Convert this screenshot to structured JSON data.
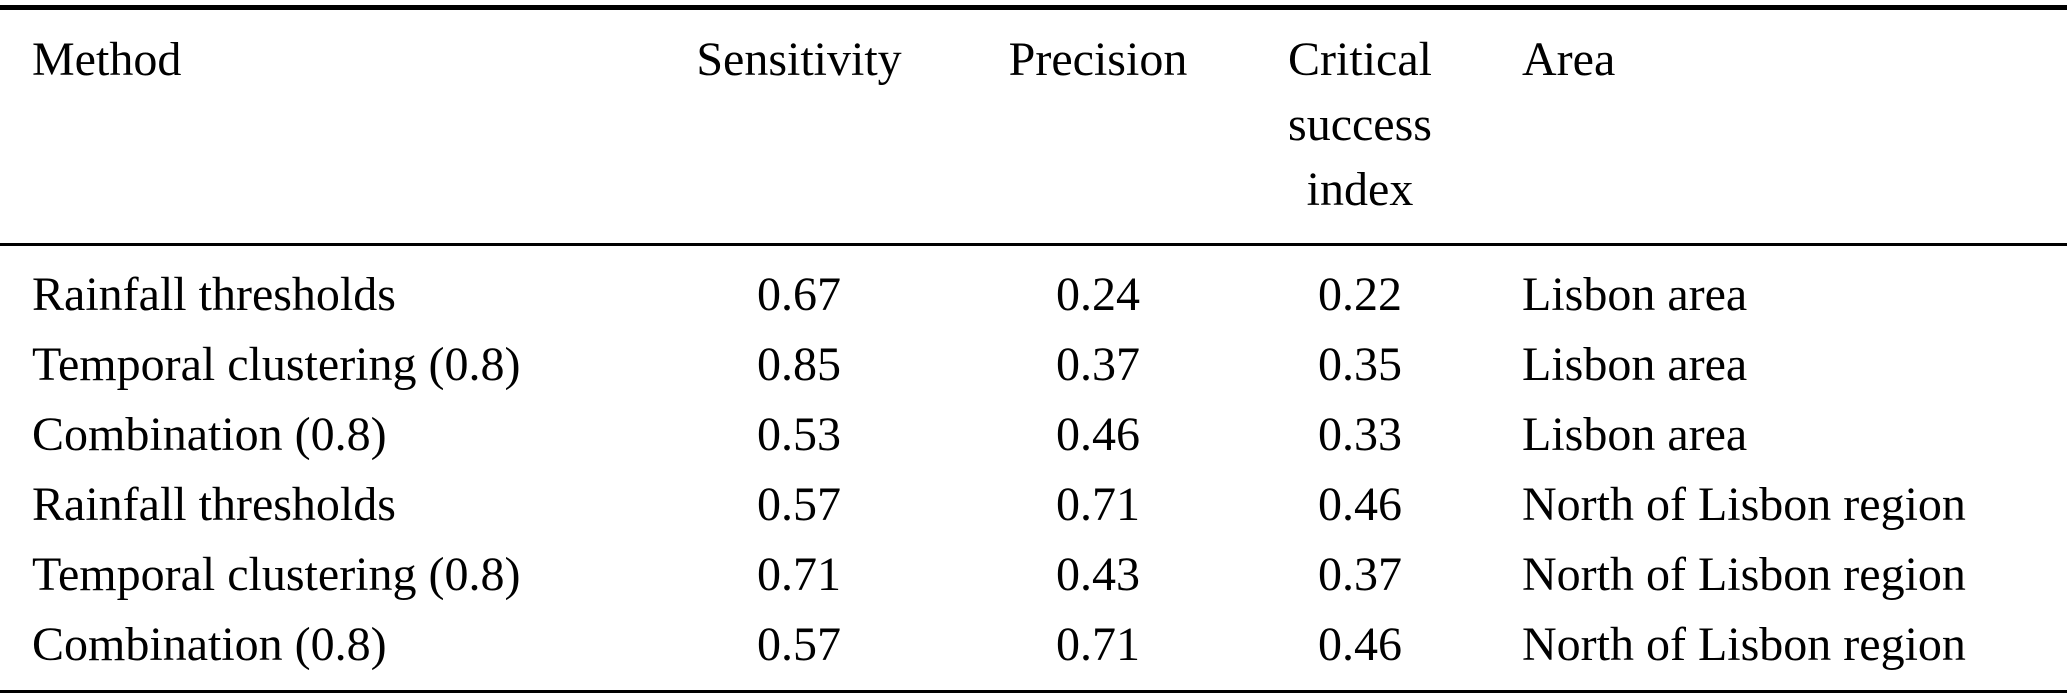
{
  "table": {
    "columns": [
      {
        "label": "Method"
      },
      {
        "label": "Sensitivity"
      },
      {
        "label": "Precision"
      },
      {
        "label": "Critical success index"
      },
      {
        "label": "Area"
      }
    ],
    "rows": [
      {
        "cells": [
          "Rainfall thresholds",
          "0.67",
          "0.24",
          "0.22",
          "Lisbon area"
        ]
      },
      {
        "cells": [
          "Temporal clustering (0.8)",
          "0.85",
          "0.37",
          "0.35",
          "Lisbon area"
        ]
      },
      {
        "cells": [
          "Combination (0.8)",
          "0.53",
          "0.46",
          "0.33",
          "Lisbon area"
        ]
      },
      {
        "cells": [
          "Rainfall thresholds",
          "0.57",
          "0.71",
          "0.46",
          "North of Lisbon region"
        ]
      },
      {
        "cells": [
          "Temporal clustering (0.8)",
          "0.71",
          "0.43",
          "0.37",
          "North of Lisbon region"
        ]
      },
      {
        "cells": [
          "Combination (0.8)",
          "0.57",
          "0.71",
          "0.46",
          "North of Lisbon region"
        ]
      }
    ]
  },
  "colors": {
    "text": "#000000",
    "background": "#ffffff",
    "rule": "#000000"
  }
}
